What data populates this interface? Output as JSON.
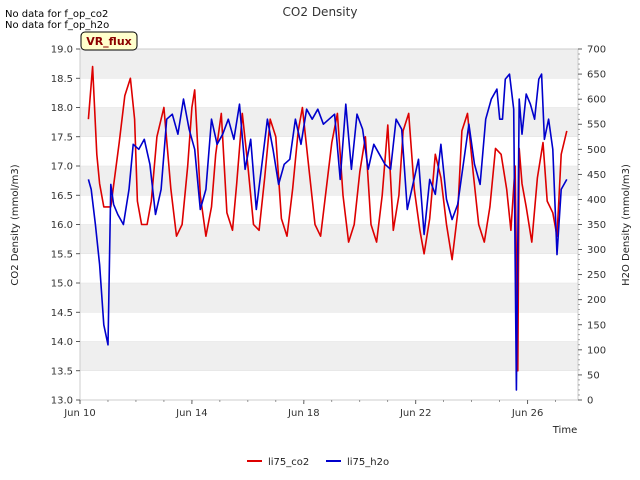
{
  "notes": [
    "No data for f_op_co2",
    "No data for f_op_h2o"
  ],
  "badge": "VR_flux",
  "chart_data": {
    "type": "line",
    "title": "CO2 Density",
    "xlabel": "Time",
    "ylabel_left": "CO2 Density (mmol/m3)",
    "ylabel_right": "H2O Density (mmol/m3)",
    "xlim": [
      10,
      27.8
    ],
    "xticks": [
      10,
      14,
      18,
      22,
      26
    ],
    "xtick_labels": [
      "Jun 10",
      "Jun 14",
      "Jun 18",
      "Jun 22",
      "Jun 26"
    ],
    "ylim_left": [
      13.0,
      19.0
    ],
    "yticks_left": [
      13.0,
      13.5,
      14.0,
      14.5,
      15.0,
      15.5,
      16.0,
      16.5,
      17.0,
      17.5,
      18.0,
      18.5,
      19.0
    ],
    "ytick_labels_left": [
      "13.0",
      "13.5",
      "14.0",
      "14.5",
      "15.0",
      "15.5",
      "16.0",
      "16.5",
      "17.0",
      "17.5",
      "18.0",
      "18.5",
      "19.0"
    ],
    "ylim_right": [
      0,
      700
    ],
    "yticks_right": [
      0,
      50,
      100,
      150,
      200,
      250,
      300,
      350,
      400,
      450,
      500,
      550,
      600,
      650,
      700
    ],
    "ytick_labels_right": [
      "0",
      "50",
      "100",
      "150",
      "200",
      "250",
      "300",
      "350",
      "400",
      "450",
      "500",
      "550",
      "600",
      "650",
      "700"
    ],
    "series": [
      {
        "name": "li75_co2",
        "axis": "left",
        "color": "#dd0000",
        "x": [
          10.3,
          10.45,
          10.6,
          10.7,
          10.85,
          11.1,
          11.4,
          11.6,
          11.8,
          11.95,
          12.05,
          12.2,
          12.4,
          12.55,
          12.75,
          13.0,
          13.25,
          13.45,
          13.65,
          13.85,
          14.0,
          14.1,
          14.3,
          14.5,
          14.7,
          14.85,
          15.05,
          15.25,
          15.45,
          15.6,
          15.8,
          16.0,
          16.2,
          16.4,
          16.6,
          16.8,
          17.0,
          17.2,
          17.4,
          17.6,
          17.8,
          17.95,
          18.15,
          18.4,
          18.6,
          18.8,
          19.0,
          19.2,
          19.4,
          19.6,
          19.8,
          20.0,
          20.2,
          20.4,
          20.6,
          20.8,
          21.0,
          21.2,
          21.4,
          21.55,
          21.75,
          21.95,
          22.15,
          22.3,
          22.5,
          22.7,
          22.9,
          23.1,
          23.3,
          23.5,
          23.65,
          23.85,
          24.05,
          24.25,
          24.45,
          24.65,
          24.85,
          25.05,
          25.25,
          25.4,
          25.55,
          25.65,
          25.7,
          25.8,
          25.95,
          26.15,
          26.35,
          26.55,
          26.7,
          26.9,
          27.05,
          27.2,
          27.4
        ],
        "values": [
          17.8,
          18.7,
          17.2,
          16.7,
          16.3,
          16.3,
          17.4,
          18.2,
          18.5,
          17.8,
          16.4,
          16.0,
          16.0,
          16.4,
          17.5,
          18.0,
          16.6,
          15.8,
          16.0,
          17.0,
          18.0,
          18.3,
          16.5,
          15.8,
          16.3,
          17.2,
          17.9,
          16.2,
          15.9,
          16.7,
          17.9,
          17.0,
          16.0,
          15.9,
          16.8,
          17.8,
          17.5,
          16.1,
          15.8,
          16.6,
          17.6,
          18.0,
          17.1,
          16.0,
          15.8,
          16.6,
          17.4,
          17.9,
          16.5,
          15.7,
          16.0,
          16.9,
          17.5,
          16.0,
          15.7,
          16.5,
          17.7,
          15.9,
          16.5,
          17.6,
          17.9,
          16.6,
          15.9,
          15.5,
          16.1,
          17.2,
          16.8,
          16.0,
          15.4,
          16.2,
          17.6,
          17.9,
          16.9,
          16.0,
          15.7,
          16.3,
          17.3,
          17.2,
          16.6,
          15.9,
          17.0,
          13.5,
          17.3,
          16.7,
          16.3,
          15.7,
          16.8,
          17.4,
          16.4,
          16.2,
          15.8,
          17.2,
          17.6
        ]
      },
      {
        "name": "li75_h2o",
        "axis": "right",
        "color": "#0000cc",
        "x": [
          10.3,
          10.4,
          10.55,
          10.7,
          10.85,
          11.0,
          11.1,
          11.2,
          11.35,
          11.55,
          11.75,
          11.9,
          12.1,
          12.3,
          12.5,
          12.7,
          12.9,
          13.1,
          13.3,
          13.5,
          13.7,
          13.9,
          14.1,
          14.3,
          14.5,
          14.7,
          14.9,
          15.1,
          15.3,
          15.5,
          15.7,
          15.9,
          16.1,
          16.3,
          16.5,
          16.7,
          16.9,
          17.1,
          17.3,
          17.5,
          17.7,
          17.9,
          18.1,
          18.3,
          18.5,
          18.7,
          18.9,
          19.1,
          19.3,
          19.5,
          19.7,
          19.9,
          20.1,
          20.3,
          20.5,
          20.7,
          20.9,
          21.1,
          21.3,
          21.5,
          21.7,
          21.9,
          22.1,
          22.3,
          22.5,
          22.7,
          22.9,
          23.1,
          23.3,
          23.5,
          23.7,
          23.9,
          24.1,
          24.3,
          24.5,
          24.7,
          24.9,
          25.0,
          25.1,
          25.2,
          25.35,
          25.5,
          25.6,
          25.7,
          25.8,
          25.95,
          26.1,
          26.25,
          26.4,
          26.5,
          26.6,
          26.75,
          26.9,
          27.05,
          27.2,
          27.4
        ],
        "values": [
          440,
          420,
          350,
          270,
          150,
          110,
          430,
          390,
          370,
          350,
          420,
          510,
          500,
          520,
          470,
          370,
          420,
          560,
          570,
          530,
          600,
          540,
          500,
          380,
          420,
          560,
          510,
          530,
          560,
          520,
          590,
          460,
          520,
          380,
          470,
          560,
          500,
          430,
          470,
          480,
          560,
          510,
          580,
          560,
          580,
          550,
          560,
          570,
          440,
          590,
          460,
          570,
          540,
          460,
          510,
          490,
          470,
          460,
          560,
          540,
          380,
          430,
          480,
          330,
          440,
          410,
          510,
          400,
          360,
          390,
          470,
          550,
          470,
          430,
          560,
          600,
          620,
          560,
          560,
          640,
          650,
          580,
          20,
          600,
          530,
          610,
          590,
          560,
          640,
          650,
          520,
          560,
          500,
          290,
          420,
          440
        ]
      }
    ],
    "legend": [
      {
        "label": "li75_co2",
        "color": "#dd0000"
      },
      {
        "label": "li75_h2o",
        "color": "#0000cc"
      }
    ],
    "legend_position": "bottom-center",
    "grid": true
  }
}
